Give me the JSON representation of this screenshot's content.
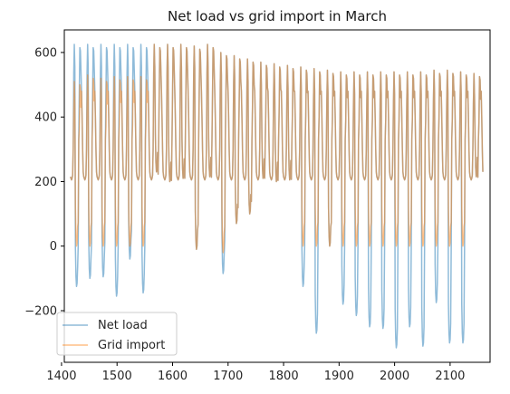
{
  "chart_data": {
    "type": "line",
    "title": "Net load vs grid import in March",
    "xlabel": "",
    "ylabel": "",
    "xlim": [
      1405,
      2172
    ],
    "ylim": [
      -360,
      670
    ],
    "x_ticks": [
      1400,
      1500,
      1600,
      1700,
      1800,
      1900,
      2000,
      2100
    ],
    "x_tick_labels": [
      "1400",
      "1500",
      "1600",
      "1700",
      "1800",
      "1900",
      "2000",
      "2100"
    ],
    "y_ticks": [
      -200,
      0,
      200,
      400,
      600
    ],
    "y_tick_labels": [
      "−200",
      "0",
      "200",
      "400",
      "600"
    ],
    "legend_position": "lower-left",
    "grid": false,
    "x_range": [
      1416,
      2160
    ],
    "days": [
      {
        "net_peak": 625,
        "net_low": -125,
        "grid_peak": 510,
        "grid_low": 0
      },
      {
        "net_peak": 625,
        "net_low": -100,
        "grid_peak": 530,
        "grid_low": 0
      },
      {
        "net_peak": 625,
        "net_low": -95,
        "grid_peak": 520,
        "grid_low": 0
      },
      {
        "net_peak": 625,
        "net_low": -155,
        "grid_peak": 525,
        "grid_low": 0
      },
      {
        "net_peak": 625,
        "net_low": -40,
        "grid_peak": 525,
        "grid_low": 0
      },
      {
        "net_peak": 625,
        "net_low": -145,
        "grid_peak": 525,
        "grid_low": 0
      },
      {
        "net_peak": 625,
        "net_low": 230,
        "grid_peak": 625,
        "grid_low": 230
      },
      {
        "net_peak": 625,
        "net_low": 200,
        "grid_peak": 625,
        "grid_low": 200
      },
      {
        "net_peak": 625,
        "net_low": 210,
        "grid_peak": 625,
        "grid_low": 210
      },
      {
        "net_peak": 620,
        "net_low": -10,
        "grid_peak": 620,
        "grid_low": -10
      },
      {
        "net_peak": 625,
        "net_low": 215,
        "grid_peak": 625,
        "grid_low": 215
      },
      {
        "net_peak": 600,
        "net_low": -85,
        "grid_peak": 600,
        "grid_low": -20
      },
      {
        "net_peak": 590,
        "net_low": 70,
        "grid_peak": 590,
        "grid_low": 70
      },
      {
        "net_peak": 580,
        "net_low": 100,
        "grid_peak": 580,
        "grid_low": 100
      },
      {
        "net_peak": 570,
        "net_low": 210,
        "grid_peak": 570,
        "grid_low": 210
      },
      {
        "net_peak": 565,
        "net_low": 200,
        "grid_peak": 565,
        "grid_low": 200
      },
      {
        "net_peak": 560,
        "net_low": 205,
        "grid_peak": 560,
        "grid_low": 205
      },
      {
        "net_peak": 555,
        "net_low": -125,
        "grid_peak": 555,
        "grid_low": 0
      },
      {
        "net_peak": 550,
        "net_low": -270,
        "grid_peak": 550,
        "grid_low": 0
      },
      {
        "net_peak": 545,
        "net_low": 0,
        "grid_peak": 545,
        "grid_low": 0
      },
      {
        "net_peak": 540,
        "net_low": -180,
        "grid_peak": 540,
        "grid_low": 0
      },
      {
        "net_peak": 540,
        "net_low": -215,
        "grid_peak": 540,
        "grid_low": 0
      },
      {
        "net_peak": 540,
        "net_low": -250,
        "grid_peak": 540,
        "grid_low": 0
      },
      {
        "net_peak": 540,
        "net_low": -255,
        "grid_peak": 540,
        "grid_low": 0
      },
      {
        "net_peak": 540,
        "net_low": -315,
        "grid_peak": 540,
        "grid_low": 0
      },
      {
        "net_peak": 540,
        "net_low": -250,
        "grid_peak": 540,
        "grid_low": 0
      },
      {
        "net_peak": 540,
        "net_low": -310,
        "grid_peak": 540,
        "grid_low": 0
      },
      {
        "net_peak": 545,
        "net_low": -175,
        "grid_peak": 545,
        "grid_low": 0
      },
      {
        "net_peak": 545,
        "net_low": -300,
        "grid_peak": 545,
        "grid_low": 0
      },
      {
        "net_peak": 540,
        "net_low": -300,
        "grid_peak": 540,
        "grid_low": 0
      },
      {
        "net_peak": 535,
        "net_low": 215,
        "grid_peak": 535,
        "grid_low": 215
      }
    ],
    "series": [
      {
        "name": "Net load",
        "color": "#1f77b4"
      },
      {
        "name": "Grid import",
        "color": "#ff7f0e"
      }
    ]
  }
}
